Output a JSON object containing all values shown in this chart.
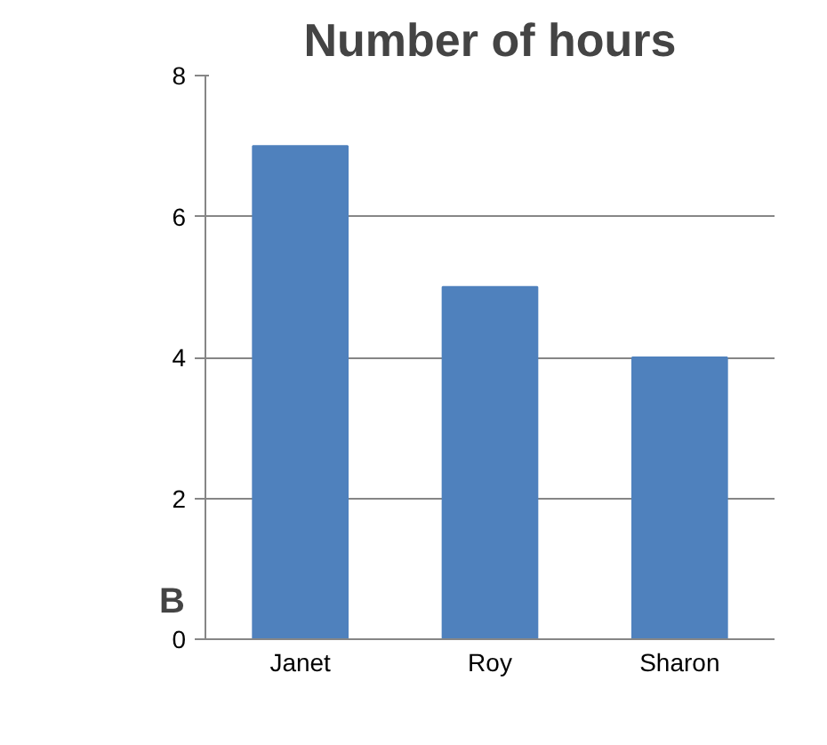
{
  "chart_data": {
    "type": "bar",
    "title": "Number of hours",
    "categories": [
      "Janet",
      "Roy",
      "Sharon"
    ],
    "values": [
      7,
      5,
      4
    ],
    "color": "#4f81bd",
    "ylim": [
      0,
      8
    ],
    "yticks": [
      0,
      2,
      4,
      6,
      8
    ],
    "grid": "y",
    "annotations": [
      "B"
    ]
  }
}
